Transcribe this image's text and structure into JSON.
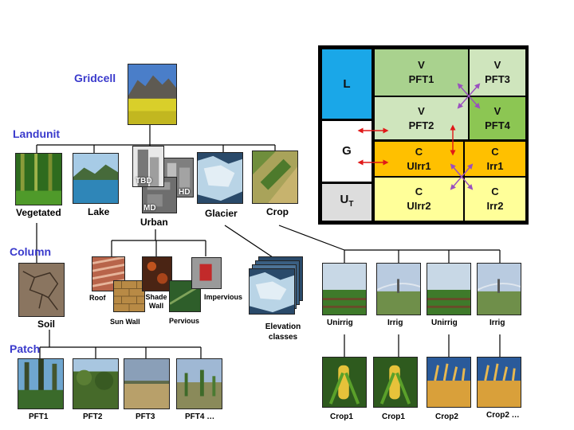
{
  "levels": {
    "gridcell": "Gridcell",
    "landunit": "Landunit",
    "column": "Column",
    "patch": "Patch"
  },
  "landunits": {
    "vegetated": "Vegetated",
    "lake": "Lake",
    "urban": "Urban",
    "glacier": "Glacier",
    "crop": "Crop"
  },
  "urban_badges": {
    "tbd": "TBD",
    "hd": "HD",
    "md": "MD"
  },
  "columns": {
    "soil": "Soil",
    "roof": "Roof",
    "sun_wall": "Sun Wall",
    "shade_wall": "Shade Wall",
    "pervious": "Pervious",
    "impervious": "Impervious",
    "elevation": "Elevation classes"
  },
  "crop_columns": [
    "Unirrig",
    "Irrig",
    "Unirrig",
    "Irrig"
  ],
  "patches": [
    "PFT1",
    "PFT2",
    "PFT3",
    "PFT4 …"
  ],
  "crop_patches": [
    "Crop1",
    "Crop1",
    "Crop2",
    "Crop2 …"
  ],
  "grid": {
    "row_labels": {
      "l": "L",
      "g": "G",
      "u_main": "U",
      "u_sub": "T"
    },
    "cells": {
      "v_pft1": {
        "top": "V",
        "bottom": "PFT1"
      },
      "v_pft3": {
        "top": "V",
        "bottom": "PFT3"
      },
      "v_pft2": {
        "top": "V",
        "bottom": "PFT2"
      },
      "v_pft4": {
        "top": "V",
        "bottom": "PFT4"
      },
      "c_uirr1": {
        "top": "C",
        "bottom": "UIrr1"
      },
      "c_irr1": {
        "top": "C",
        "bottom": "Irr1"
      },
      "c_uirr2": {
        "top": "C",
        "bottom": "UIrr2"
      },
      "c_irr2": {
        "top": "C",
        "bottom": "Irr2"
      }
    }
  },
  "colors": {
    "level_label": "#3a3acc",
    "lake_blue": "#1aa7e8",
    "veg_green": "#a9d28e",
    "veg_light": "#cfe5bd",
    "veg_bright": "#8cc653",
    "crop_orange": "#ffc000",
    "crop_yellow": "#ffff99",
    "urban_gray": "#dddddd",
    "arrow_red": "#e01818",
    "arrow_purple": "#9a4fbf"
  }
}
